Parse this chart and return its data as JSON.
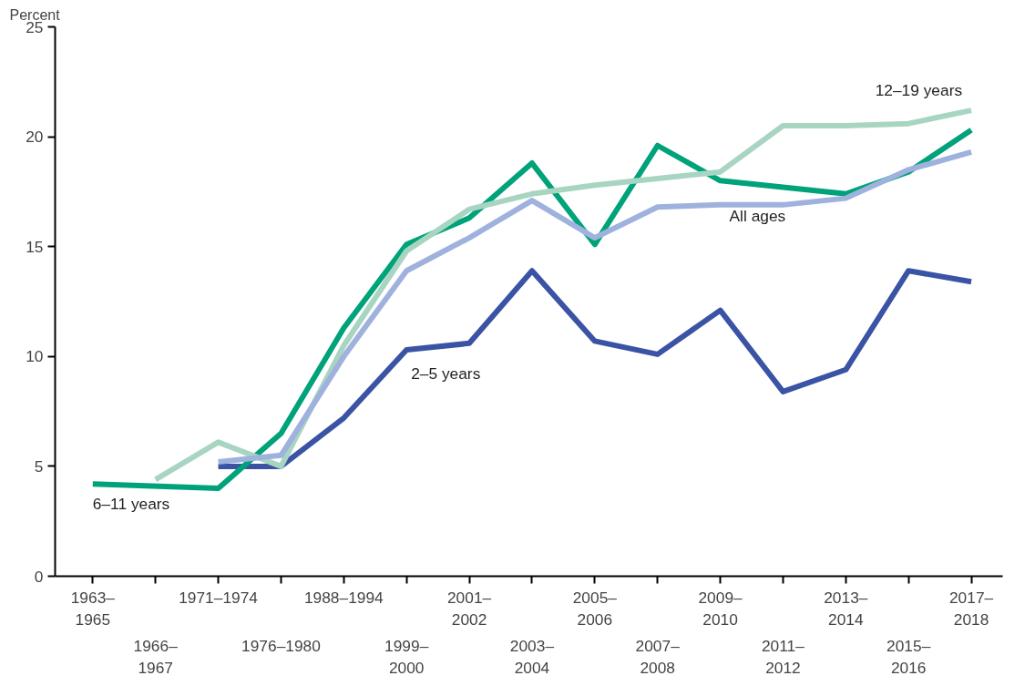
{
  "chart_data": {
    "type": "line",
    "ylabel": "Percent",
    "categories": [
      "1963–\n1965",
      "1966–\n1967",
      "1971–1974",
      "1976–1980",
      "1988–1994",
      "1999–\n2000",
      "2001–\n2002",
      "2003–\n2004",
      "2005–\n2006",
      "2007–\n2008",
      "2009–\n2010",
      "2011–\n2012",
      "2013–\n2014",
      "2015–\n2016",
      "2017–\n2018"
    ],
    "series": [
      {
        "name": "2–5 years",
        "color": "#3a53a4",
        "values": [
          null,
          null,
          5.0,
          5.0,
          7.2,
          10.3,
          10.6,
          13.9,
          10.7,
          10.1,
          12.1,
          8.4,
          9.4,
          13.9,
          13.4
        ]
      },
      {
        "name": "6–11 years",
        "color": "#00a379",
        "values": [
          4.2,
          null,
          4.0,
          6.5,
          11.3,
          15.1,
          16.3,
          18.8,
          15.1,
          19.6,
          18.0,
          17.7,
          17.4,
          18.4,
          20.3
        ]
      },
      {
        "name": "12–19 years",
        "color": "#a8d5c2",
        "values": [
          null,
          4.4,
          6.1,
          5.0,
          10.5,
          14.8,
          16.7,
          17.4,
          17.8,
          18.1,
          18.4,
          20.5,
          20.5,
          20.6,
          21.2
        ]
      },
      {
        "name": "All ages",
        "color": "#9fb1dd",
        "values": [
          null,
          null,
          5.2,
          5.5,
          10.0,
          13.9,
          15.4,
          17.1,
          15.4,
          16.8,
          16.9,
          16.9,
          17.2,
          18.5,
          19.3
        ]
      }
    ],
    "ylim": [
      0,
      25
    ],
    "yticks": [
      0,
      5,
      10,
      15,
      20,
      25
    ],
    "grid": false,
    "marker": "none",
    "line_style": "solid"
  }
}
